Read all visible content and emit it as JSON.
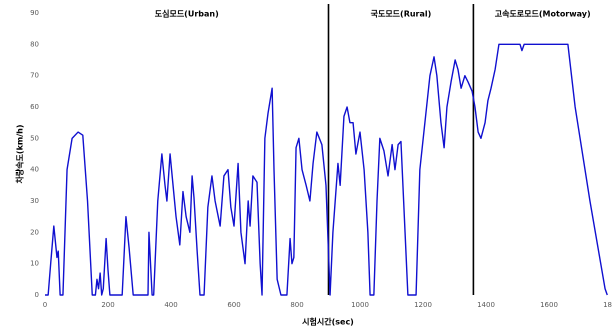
{
  "chart_data": {
    "type": "line",
    "x_label": "시험시간(sec)",
    "y_label": "차량속도(km/h)",
    "x": [
      0,
      10,
      18,
      28,
      35,
      38,
      42,
      48,
      57,
      70,
      86,
      105,
      120,
      135,
      150,
      160,
      165,
      170,
      175,
      180,
      185,
      194,
      200,
      206,
      245,
      257,
      267,
      280,
      327,
      330,
      340,
      345,
      358,
      371,
      381,
      387,
      397,
      416,
      428,
      438,
      448,
      460,
      467,
      473,
      483,
      492,
      505,
      517,
      530,
      540,
      556,
      568,
      581,
      590,
      600,
      613,
      622,
      635,
      645,
      651,
      660,
      673,
      683,
      689,
      698,
      708,
      721,
      727,
      737,
      749,
      768,
      778,
      784,
      790,
      797,
      806,
      816,
      829,
      841,
      851,
      863,
      879,
      892,
      905,
      914,
      930,
      937,
      949,
      959,
      968,
      978,
      987,
      1000,
      1013,
      1025,
      1032,
      1044,
      1054,
      1063,
      1076,
      1089,
      1102,
      1111,
      1121,
      1130,
      1143,
      1152,
      1178,
      1190,
      1206,
      1222,
      1235,
      1244,
      1257,
      1267,
      1276,
      1289,
      1302,
      1311,
      1321,
      1333,
      1343,
      1356,
      1365,
      1375,
      1384,
      1397,
      1406,
      1416,
      1429,
      1441,
      1508,
      1514,
      1521,
      1660,
      1683,
      1730,
      1778,
      1785
    ],
    "series": [
      {
        "name": "speed",
        "color": "#1010d0",
        "values": [
          0,
          0,
          10,
          22,
          15,
          12,
          14,
          0,
          0,
          40,
          50,
          52,
          51,
          30,
          0,
          0,
          5,
          2,
          7,
          0,
          2,
          18,
          8,
          0,
          0,
          25,
          15,
          0,
          0,
          20,
          0,
          0,
          30,
          45,
          35,
          30,
          45,
          25,
          16,
          33,
          25,
          20,
          38,
          31,
          14,
          0,
          0,
          28,
          38,
          30,
          22,
          38,
          40,
          28,
          22,
          42,
          20,
          10,
          30,
          22,
          38,
          36,
          10,
          0,
          50,
          58,
          66,
          40,
          5,
          0,
          0,
          18,
          10,
          12,
          47,
          50,
          40,
          35,
          30,
          42,
          52,
          48,
          35,
          0,
          20,
          42,
          35,
          57,
          60,
          55,
          55,
          45,
          52,
          40,
          20,
          0,
          0,
          30,
          50,
          46,
          38,
          48,
          40,
          48,
          49,
          20,
          0,
          0,
          40,
          55,
          70,
          76,
          70,
          55,
          47,
          60,
          68,
          75,
          72,
          66,
          70,
          68,
          65,
          60,
          52,
          50,
          55,
          62,
          66,
          72,
          80,
          80,
          78,
          80,
          80,
          60,
          30,
          2,
          0
        ]
      }
    ],
    "dividers": [
      900,
      1360
    ],
    "divider_color": "#000000",
    "mode_labels": [
      "도심모드(Urban)",
      "국도모드(Rural)",
      "고속도로모드(Motorway)"
    ],
    "xlim": [
      0,
      1800
    ],
    "ylim": [
      0,
      90
    ],
    "xticks": [
      0,
      200,
      400,
      600,
      800,
      1000,
      1200,
      1400,
      1600,
      1800
    ],
    "yticks": [
      0,
      10,
      20,
      30,
      40,
      50,
      60,
      70,
      80,
      90
    ],
    "grid": false
  }
}
